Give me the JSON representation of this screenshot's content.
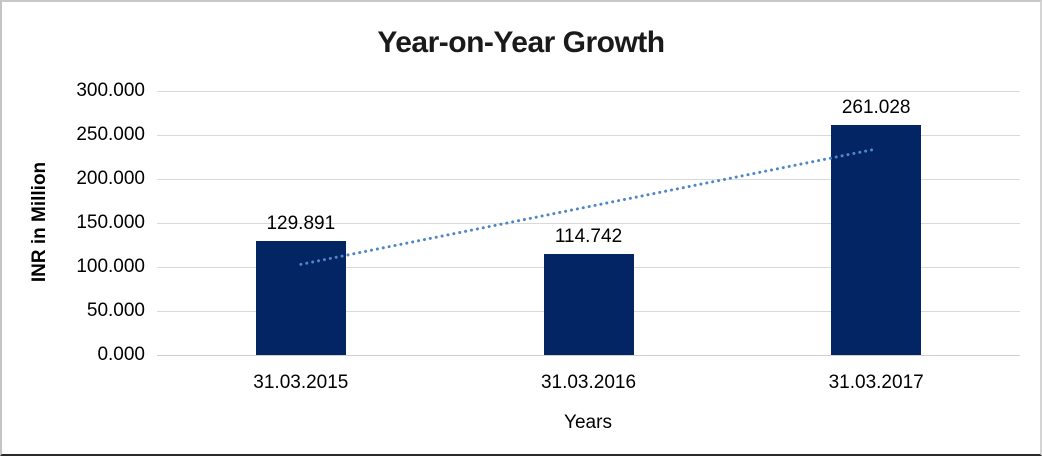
{
  "chart_data": {
    "type": "bar",
    "title": "Year-on-Year Growth",
    "xlabel": "Years",
    "ylabel": "INR in Million",
    "categories": [
      "31.03.2015",
      "31.03.2016",
      "31.03.2017"
    ],
    "values": [
      129.891,
      114.742,
      261.028
    ],
    "data_labels": [
      "129.891",
      "114.742",
      "261.028"
    ],
    "ylim": [
      0,
      300
    ],
    "y_ticks": [
      {
        "value": 300,
        "label": "300.000"
      },
      {
        "value": 250,
        "label": "250.000"
      },
      {
        "value": 200,
        "label": "200.000"
      },
      {
        "value": 150,
        "label": "150.000"
      },
      {
        "value": 100,
        "label": "100.000"
      },
      {
        "value": 50,
        "label": "50.000"
      },
      {
        "value": 0,
        "label": "0.000"
      }
    ],
    "grid": true,
    "legend": "none",
    "trendline": {
      "type": "linear",
      "style": "dotted",
      "start_category_index": 0,
      "end_category_index": 2,
      "start_value": 103.0,
      "end_value": 234.1
    },
    "colors": {
      "bar": "#032564",
      "trendline": "#4f86c6",
      "gridline": "#d9d9d9",
      "axis_line": "#cfcfcf",
      "title_text": "#1a1a1a",
      "axis_text": "#000000"
    }
  }
}
